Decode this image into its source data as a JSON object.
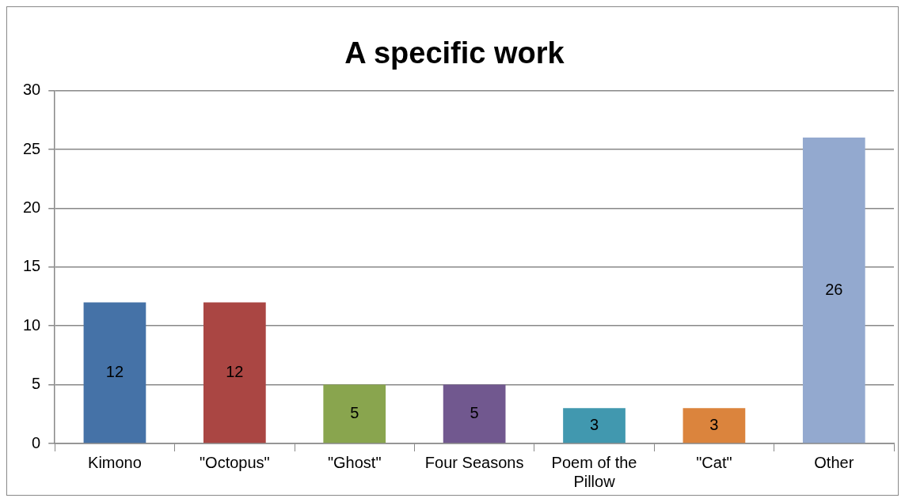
{
  "chart_data": {
    "type": "bar",
    "title": "A specific work",
    "categories": [
      "Kimono",
      "\"Octopus\"",
      "\"Ghost\"",
      "Four Seasons",
      "Poem of the Pillow",
      "\"Cat\"",
      "Other"
    ],
    "values": [
      12,
      12,
      5,
      5,
      3,
      3,
      26
    ],
    "colors": [
      "#4572a7",
      "#aa4643",
      "#89a54e",
      "#71588f",
      "#4198af",
      "#db843d",
      "#93a9cf"
    ],
    "ylim": [
      0,
      30
    ],
    "yticks": [
      0,
      5,
      10,
      15,
      20,
      25,
      30
    ],
    "grid": "y",
    "legend": false,
    "data_labels": true
  }
}
